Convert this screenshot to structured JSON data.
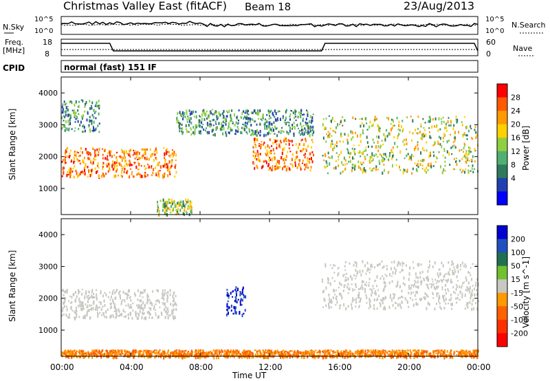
{
  "header": {
    "title": "Christmas Valley East (fitACF)",
    "beam": "Beam 18",
    "date": "23/Aug/2013",
    "mode": "normal (fast) 151 IF"
  },
  "noise_panel": {
    "left_label": "N.Sky",
    "right_label": "N.Search",
    "left_ticks": [
      "10^5",
      "10^0"
    ],
    "right_ticks": [
      "10^5",
      "10^0"
    ]
  },
  "freq_panel": {
    "left_label_line1": "Freq.",
    "left_label_line2": "[MHz]",
    "right_label": "Nave",
    "left_ticks": [
      "18",
      "8"
    ],
    "right_ticks": [
      "60",
      "0"
    ],
    "cpid_label": "CPID"
  },
  "time_axis": {
    "label": "Time UT",
    "ticks": [
      "00:00",
      "04:00",
      "08:00",
      "12:00",
      "16:00",
      "20:00",
      "00:00"
    ]
  },
  "chart_data": [
    {
      "type": "heatmap",
      "title": "Power",
      "ylabel": "Slant Range [km]",
      "xlabel": "",
      "ylim": [
        180,
        4500
      ],
      "y_ticks": [
        "1000",
        "2000",
        "3000",
        "4000"
      ],
      "x": [
        "00:00",
        "04:00",
        "08:00",
        "12:00",
        "16:00",
        "20:00",
        "00:00"
      ],
      "colorbar_label": "Power [dB]",
      "colorbar_ticks": [
        "28",
        "24",
        "20",
        "16",
        "12",
        "8",
        "4"
      ],
      "colorbar_colors": [
        "#ff0000",
        "#ff5a00",
        "#ff9a00",
        "#ffd000",
        "#90d040",
        "#50b070",
        "#2f7a5a",
        "#2040b0",
        "#0000ff"
      ],
      "echo_bands": [
        {
          "t0": 0.0,
          "t1": 6.6,
          "r0": 1400,
          "r1": 2300,
          "level": "high"
        },
        {
          "t0": 0.0,
          "t1": 2.2,
          "r0": 2800,
          "r1": 3800,
          "level": "low"
        },
        {
          "t0": 6.6,
          "t1": 14.5,
          "r0": 2700,
          "r1": 3500,
          "level": "low"
        },
        {
          "t0": 11.0,
          "t1": 14.5,
          "r0": 1600,
          "r1": 2600,
          "level": "high"
        },
        {
          "t0": 15.0,
          "t1": 24.0,
          "r0": 1500,
          "r1": 3300,
          "level": "mid"
        },
        {
          "t0": 5.5,
          "t1": 7.5,
          "r0": 200,
          "r1": 700,
          "level": "mid"
        }
      ]
    },
    {
      "type": "heatmap",
      "title": "Velocity",
      "ylabel": "Slant Range [km]",
      "xlabel": "Time UT",
      "ylim": [
        180,
        4500
      ],
      "y_ticks": [
        "1000",
        "2000",
        "3000",
        "4000"
      ],
      "x": [
        "00:00",
        "04:00",
        "08:00",
        "12:00",
        "16:00",
        "20:00",
        "00:00"
      ],
      "colorbar_label": "Velocity [m s^-1]",
      "colorbar_ticks": [
        "200",
        "100",
        "50",
        "15",
        "-15",
        "-50",
        "-100",
        "-200"
      ],
      "colorbar_colors": [
        "#0000d0",
        "#2050c0",
        "#207050",
        "#70c030",
        "#c8c8c0",
        "#ff9a00",
        "#ff6000",
        "#ff3000",
        "#ff0000"
      ],
      "echo_bands": [
        {
          "t0": 0.0,
          "t1": 6.6,
          "r0": 1400,
          "r1": 2300,
          "level": "ground"
        },
        {
          "t0": 9.5,
          "t1": 10.6,
          "r0": 1500,
          "r1": 2400,
          "level": "positive"
        },
        {
          "t0": 15.0,
          "t1": 24.0,
          "r0": 1700,
          "r1": 3200,
          "level": "ground"
        },
        {
          "t0": 0.0,
          "t1": 24.0,
          "r0": 180,
          "r1": 400,
          "level": "negative"
        }
      ]
    }
  ]
}
